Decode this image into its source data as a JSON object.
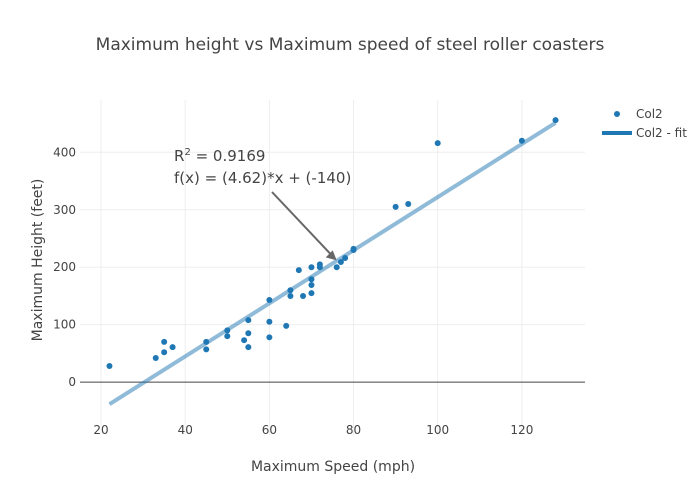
{
  "chart_data": {
    "type": "scatter",
    "title": "Maximum height vs Maximum speed of steel roller coasters",
    "x_label": "Maximum Speed (mph)",
    "y_label": "Maximum Height (feet)",
    "xlim": [
      15,
      135
    ],
    "ylim": [
      -92,
      491
    ],
    "xticks": [
      20,
      40,
      60,
      80,
      100,
      120
    ],
    "yticks": [
      0,
      100,
      200,
      300,
      400
    ],
    "grid": true,
    "series": [
      {
        "name": "Col2",
        "color": "#1f77b4",
        "x": [
          22,
          33,
          35,
          35,
          37,
          45,
          45,
          50,
          50,
          54,
          55,
          55,
          55,
          60,
          60,
          60,
          64,
          65,
          65,
          67,
          68,
          70,
          70,
          70,
          70,
          72,
          72,
          76,
          77,
          78,
          80,
          80,
          90,
          93,
          100,
          120,
          128
        ],
        "values": [
          28,
          42,
          52,
          70,
          61,
          57,
          70,
          80,
          90,
          73,
          61,
          85,
          108,
          78,
          105,
          143,
          98,
          150,
          160,
          195,
          150,
          155,
          169,
          179,
          200,
          200,
          205,
          200,
          209,
          216,
          230,
          232,
          305,
          310,
          416,
          420,
          456
        ]
      },
      {
        "name": "Col2 - fit",
        "color": "#1f77b4",
        "line": true,
        "x": [
          22,
          128
        ],
        "values": [
          -38.36,
          451.36
        ]
      }
    ],
    "annotation": {
      "r_label": "R",
      "r_sup": "2",
      "r_value": " = 0.9169",
      "formula": "f(x) = (4.62)*x + (-140)",
      "x": 76,
      "y": 212
    }
  }
}
